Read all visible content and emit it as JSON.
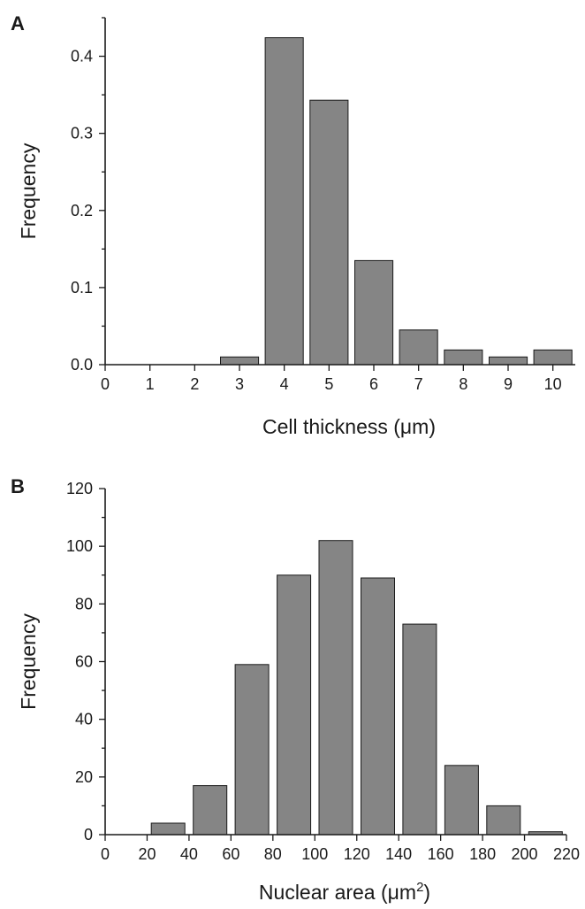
{
  "chart_data": [
    {
      "panel": "A",
      "type": "bar",
      "xlabel": "Cell thickness (μm)",
      "ylabel": "Frequency",
      "x": [
        3,
        4,
        5,
        6,
        7,
        8,
        9,
        10
      ],
      "values": [
        0.01,
        0.424,
        0.343,
        0.135,
        0.045,
        0.019,
        0.01,
        0.019
      ],
      "bin_width": 0.85,
      "xlim": [
        0,
        10.5
      ],
      "ylim": [
        0,
        0.45
      ],
      "xticks": [
        0,
        1,
        2,
        3,
        4,
        5,
        6,
        7,
        8,
        9,
        10
      ],
      "xtick_labels": [
        "0",
        "1",
        "2",
        "3",
        "4",
        "5",
        "6",
        "7",
        "8",
        "9",
        "10"
      ],
      "yticks": [
        0,
        0.1,
        0.2,
        0.3,
        0.4
      ],
      "ytick_labels": [
        "0.0",
        "0.1",
        "0.2",
        "0.3",
        "0.4"
      ],
      "bar_color": "#858585",
      "grid": false
    },
    {
      "panel": "B",
      "type": "bar",
      "xlabel": "Nuclear area (μm²)",
      "ylabel": "Frequency",
      "x": [
        30,
        50,
        70,
        90,
        110,
        130,
        150,
        170,
        190,
        210
      ],
      "values": [
        4,
        17,
        59,
        90,
        102,
        89,
        73,
        24,
        10,
        1
      ],
      "bin_width": 16,
      "xlim": [
        0,
        220
      ],
      "ylim": [
        0,
        120
      ],
      "xticks": [
        0,
        20,
        40,
        60,
        80,
        100,
        120,
        140,
        160,
        180,
        200,
        220
      ],
      "xtick_labels": [
        "0",
        "20",
        "40",
        "60",
        "80",
        "100",
        "120",
        "140",
        "160",
        "180",
        "200",
        "220"
      ],
      "yticks": [
        0,
        20,
        40,
        60,
        80,
        100,
        120
      ],
      "ytick_labels": [
        "0",
        "20",
        "40",
        "60",
        "80",
        "100",
        "120"
      ],
      "bar_color": "#858585",
      "grid": false
    }
  ]
}
